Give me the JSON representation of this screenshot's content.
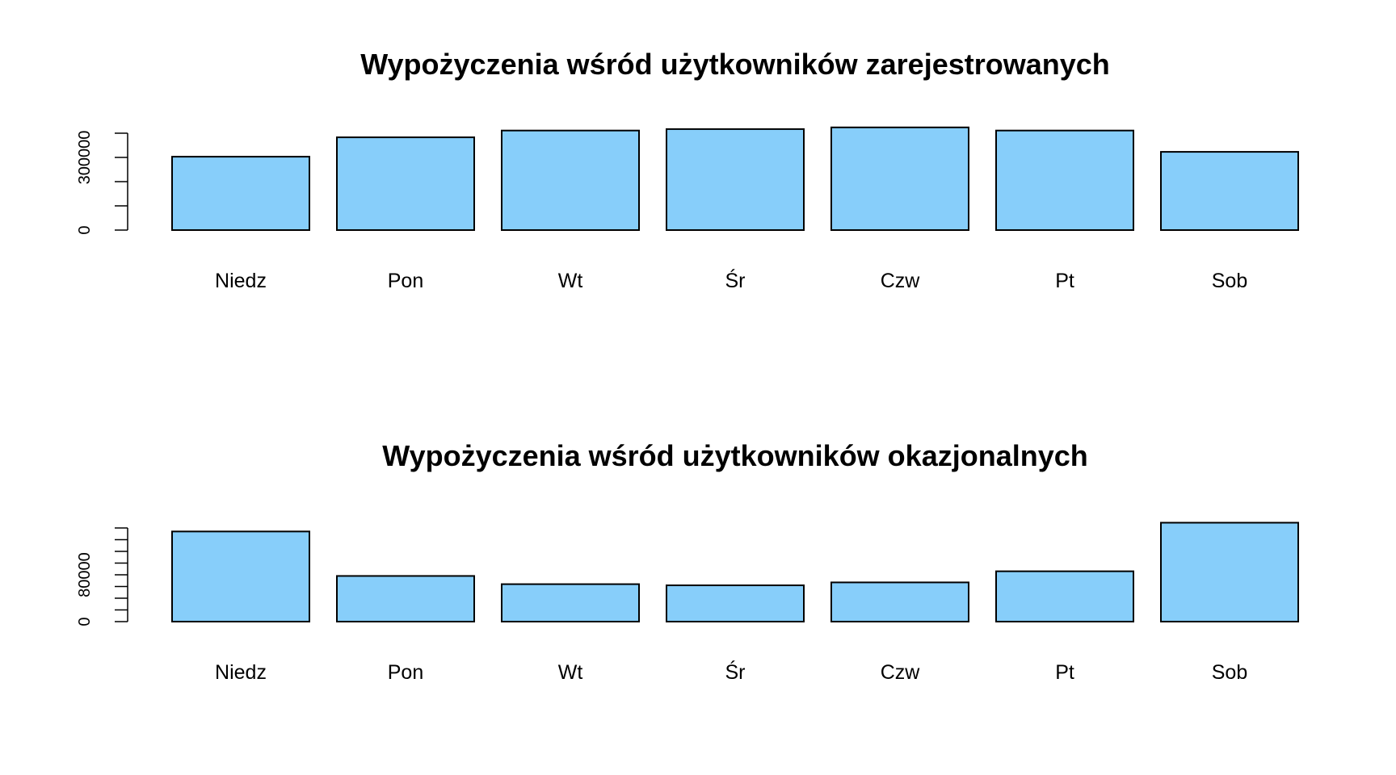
{
  "chart_data": [
    {
      "type": "bar",
      "title": "Wypożyczenia wśród użytkowników zarejestrowanych",
      "xlabel": "",
      "ylabel": "",
      "categories": [
        "Niedz",
        "Pon",
        "Wt",
        "Śr",
        "Czw",
        "Pt",
        "Sob"
      ],
      "values": [
        303000,
        383000,
        411000,
        417000,
        424000,
        411000,
        323000
      ],
      "ylim": [
        0,
        400000
      ],
      "y_ticks": [
        0,
        100000,
        200000,
        300000,
        400000
      ],
      "y_tick_labels": [
        "0",
        "300000"
      ],
      "y_tick_label_values": [
        0,
        300000
      ],
      "bar_color": "#87CEFA",
      "grid": false
    },
    {
      "type": "bar",
      "title": "Wypożyczenia wśród użytkowników okazjonalnych",
      "xlabel": "",
      "ylabel": "",
      "categories": [
        "Niedz",
        "Pon",
        "Wt",
        "Śr",
        "Czw",
        "Pt",
        "Sob"
      ],
      "values": [
        154000,
        78000,
        64000,
        62000,
        67000,
        86000,
        169000
      ],
      "ylim": [
        0,
        160000
      ],
      "y_ticks": [
        0,
        20000,
        40000,
        60000,
        80000,
        100000,
        120000,
        140000,
        160000
      ],
      "y_tick_labels": [
        "0",
        "80000"
      ],
      "y_tick_label_values": [
        0,
        80000
      ],
      "bar_color": "#87CEFA",
      "grid": false
    }
  ]
}
